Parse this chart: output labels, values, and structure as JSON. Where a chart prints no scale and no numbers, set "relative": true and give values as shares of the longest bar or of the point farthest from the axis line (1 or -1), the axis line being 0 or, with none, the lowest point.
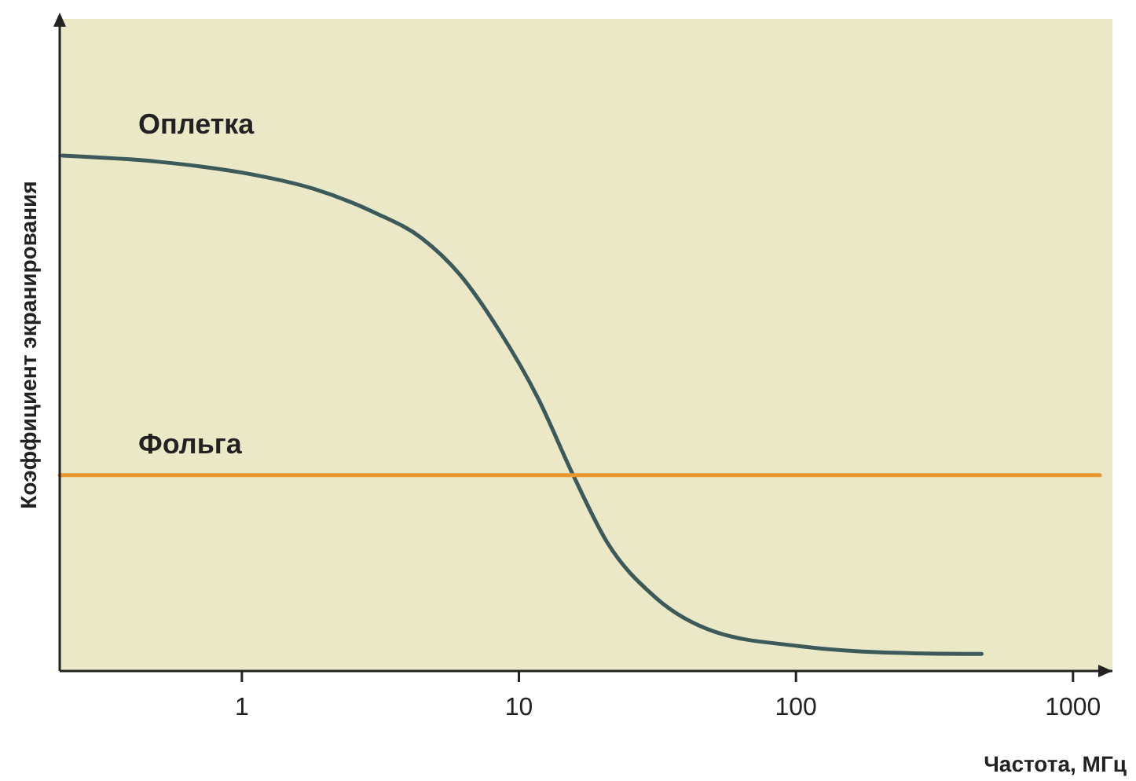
{
  "chart_data": {
    "type": "line",
    "relative": true,
    "log": "x",
    "xlabel": "Частота, МГц",
    "ylabel": "Коэффициент экранирования",
    "xlim": [
      0.22,
      1250
    ],
    "xticks": [
      1,
      10,
      100,
      1000
    ],
    "grid": false,
    "marker": "none",
    "line_style": "solid",
    "series": [
      {
        "name": "Оплетка",
        "color": "#3d5a5a",
        "x": [
          0.225,
          0.5,
          1,
          1.8,
          3.0,
          4.45,
          6.1,
          8.5,
          11.7,
          15.7,
          20.8,
          30.6,
          51,
          100,
          210,
          468
        ],
        "values": [
          1.0,
          0.988,
          0.967,
          0.936,
          0.89,
          0.84,
          0.77,
          0.66,
          0.53,
          0.38,
          0.25,
          0.146,
          0.076,
          0.049,
          0.036,
          0.033
        ]
      },
      {
        "name": "Фольга",
        "color": "#e8962e",
        "x": [
          0.22,
          1250
        ],
        "values": [
          0.38,
          0.38
        ]
      }
    ]
  }
}
